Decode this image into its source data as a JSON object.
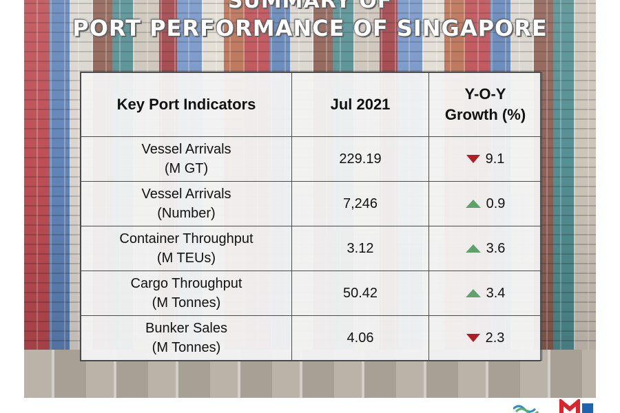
{
  "title": {
    "line1": "SUMMARY OF",
    "line2": "PORT PERFORMANCE OF SINGAPORE"
  },
  "table": {
    "headers": {
      "indicator": "Key Port Indicators",
      "period": "Jul 2021",
      "growth_line1": "Y-O-Y",
      "growth_line2": "Growth (%)"
    },
    "rows": [
      {
        "name": "Vessel Arrivals",
        "unit": "(M GT)",
        "value": "229.19",
        "growth": "9.1",
        "trend": "down",
        "trend_icon": "triangle-down-icon"
      },
      {
        "name": "Vessel Arrivals",
        "unit": "(Number)",
        "value": "7,246",
        "growth": "0.9",
        "trend": "up",
        "trend_icon": "triangle-up-icon"
      },
      {
        "name": "Container Throughput",
        "unit": "(M TEUs)",
        "value": "3.12",
        "growth": "3.6",
        "trend": "up",
        "trend_icon": "triangle-up-icon"
      },
      {
        "name": "Cargo Throughput",
        "unit": "(M Tonnes)",
        "value": "50.42",
        "growth": "3.4",
        "trend": "up",
        "trend_icon": "triangle-up-icon"
      },
      {
        "name": "Bunker Sales",
        "unit": "(M Tonnes)",
        "value": "4.06",
        "growth": "2.3",
        "trend": "down",
        "trend_icon": "triangle-down-icon"
      }
    ]
  },
  "colors": {
    "trend_down": "#b01e24",
    "trend_up": "#5ea36a"
  }
}
